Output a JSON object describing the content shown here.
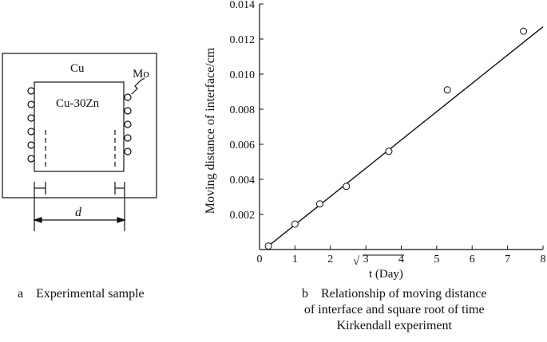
{
  "panel_a": {
    "outer_label": "Cu",
    "inner_label": "Cu-30Zn",
    "marker_label": "Mo",
    "dimension_label": "d",
    "caption_letter": "a",
    "caption_text": "Experimental sample"
  },
  "panel_b": {
    "caption_letter": "b",
    "caption_line1": "Relationship of moving distance",
    "caption_line2": "of interface and square root of time",
    "caption_line3": "Kirkendall experiment"
  },
  "chart_data": {
    "type": "scatter",
    "xlabel_prefix": "√",
    "xlabel": "t (Day)",
    "ylabel": "Moving distance of interface/cm",
    "xlim": [
      0,
      8
    ],
    "ylim": [
      0,
      0.014
    ],
    "xticks": [
      "0",
      "1",
      "2",
      "3",
      "4",
      "5",
      "6",
      "7",
      "8"
    ],
    "yticks": [
      "0.002",
      "0.004",
      "0.006",
      "0.008",
      "0.010",
      "0.012",
      "0.014"
    ],
    "grid": false,
    "points": [
      {
        "x": 0.25,
        "y": 0.0002
      },
      {
        "x": 1.0,
        "y": 0.00145
      },
      {
        "x": 1.7,
        "y": 0.0026
      },
      {
        "x": 2.45,
        "y": 0.0036
      },
      {
        "x": 3.65,
        "y": 0.0056
      },
      {
        "x": 5.3,
        "y": 0.0091
      },
      {
        "x": 7.45,
        "y": 0.01245
      }
    ],
    "fit_line": {
      "x": [
        0.25,
        8.0
      ],
      "y": [
        0.0002,
        0.0127
      ]
    }
  }
}
